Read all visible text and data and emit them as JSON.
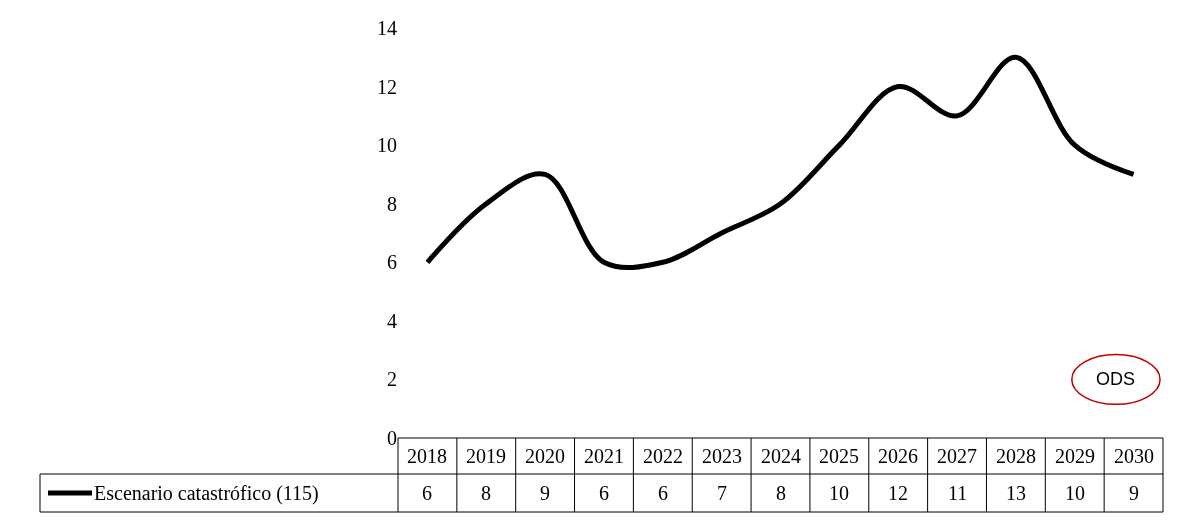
{
  "chart_data": {
    "type": "line",
    "categories": [
      "2018",
      "2019",
      "2020",
      "2021",
      "2022",
      "2023",
      "2024",
      "2025",
      "2026",
      "2027",
      "2028",
      "2029",
      "2030"
    ],
    "series": [
      {
        "name": "Escenario catastrófico (115)",
        "color": "#000000",
        "values": [
          6,
          8,
          9,
          6,
          6,
          7,
          8,
          10,
          12,
          11,
          13,
          10,
          9
        ]
      }
    ],
    "ylim": [
      0,
      14
    ],
    "yticks": [
      0,
      2,
      4,
      6,
      8,
      10,
      12,
      14
    ],
    "annotations": [
      "ODS"
    ],
    "data_labels": true,
    "legend": "bottom",
    "marker": "none",
    "line_style": "solid"
  }
}
